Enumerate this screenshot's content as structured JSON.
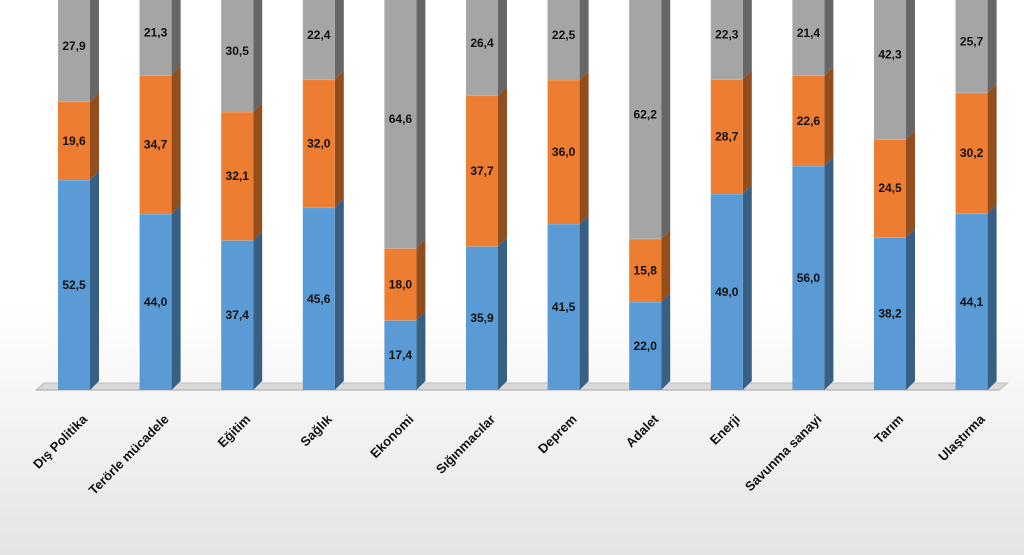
{
  "chart_data": {
    "type": "bar",
    "stacked": true,
    "categories": [
      "Dış Politika",
      "Terörle mücadele",
      "Eğitim",
      "Sağlık",
      "Ekonomi",
      "Sığınmacılar",
      "Deprem",
      "Adalet",
      "Enerji",
      "Savunma sanayi",
      "Tarım",
      "Ulaştırma"
    ],
    "series": [
      {
        "color": "#5b9bd5",
        "values": [
          52.5,
          44.0,
          37.4,
          45.6,
          17.4,
          35.9,
          41.5,
          22.0,
          49.0,
          56.0,
          38.2,
          44.1
        ],
        "labels": [
          "52,5",
          "44,0",
          "37,4",
          "45,6",
          "17,4",
          "35,9",
          "41,5",
          "22,0",
          "49,0",
          "56,0",
          "38,2",
          "44,1"
        ]
      },
      {
        "color": "#ed7d31",
        "values": [
          19.6,
          34.7,
          32.1,
          32.0,
          18.0,
          37.7,
          36.0,
          15.8,
          28.7,
          22.6,
          24.5,
          30.2
        ],
        "labels": [
          "19,6",
          "34,7",
          "32,1",
          "32,0",
          "18,0",
          "37,7",
          "36,0",
          "15,8",
          "28,7",
          "22,6",
          "24,5",
          "30,2"
        ]
      },
      {
        "color": "#a5a5a5",
        "values": [
          27.9,
          21.3,
          30.5,
          22.4,
          64.6,
          26.4,
          22.5,
          62.2,
          22.3,
          21.4,
          42.3,
          25.7
        ],
        "labels": [
          "27,9",
          "21,3",
          "30,5",
          "22,4",
          "64,6",
          "26,4",
          "22,5",
          "62,2",
          "22,3",
          "21,4",
          "42,3",
          "25,7"
        ]
      }
    ],
    "ylim": [
      0,
      100
    ]
  }
}
